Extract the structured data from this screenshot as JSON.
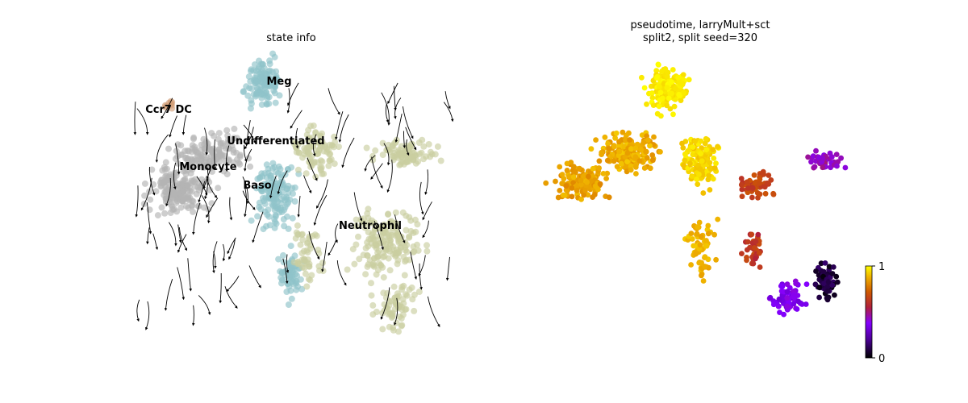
{
  "chart_data": [
    {
      "type": "scatter",
      "subtype": "umap-embedding-with-velocity-streamlines",
      "title": "state info",
      "axes_visible": false,
      "legend": "on-data",
      "annotations": [
        "Ccr7 DC",
        "Meg",
        "Undifferentiated",
        "Monocyte",
        "Baso",
        "Neutrophil"
      ],
      "colors": {
        "Ccr7 DC": "#d2a07a",
        "Meg": "#8fc3c9",
        "Undifferentiated": "#c9ce9f",
        "Monocyte": "#b4b4b4",
        "Baso": "#8fc3c9",
        "Neutrophil": "#c9ce9f",
        "streamline": "#000000"
      }
    },
    {
      "type": "scatter",
      "subtype": "umap-embedding-colored-by-pseudotime",
      "title": "pseudotime, larryMult+sct\nsplit2, split seed=320",
      "axes_visible": false,
      "colormap": "gnuplot",
      "colorbar": {
        "min": 0,
        "max": 1,
        "ticks": [
          "0",
          "1"
        ],
        "position": "right"
      }
    }
  ]
}
